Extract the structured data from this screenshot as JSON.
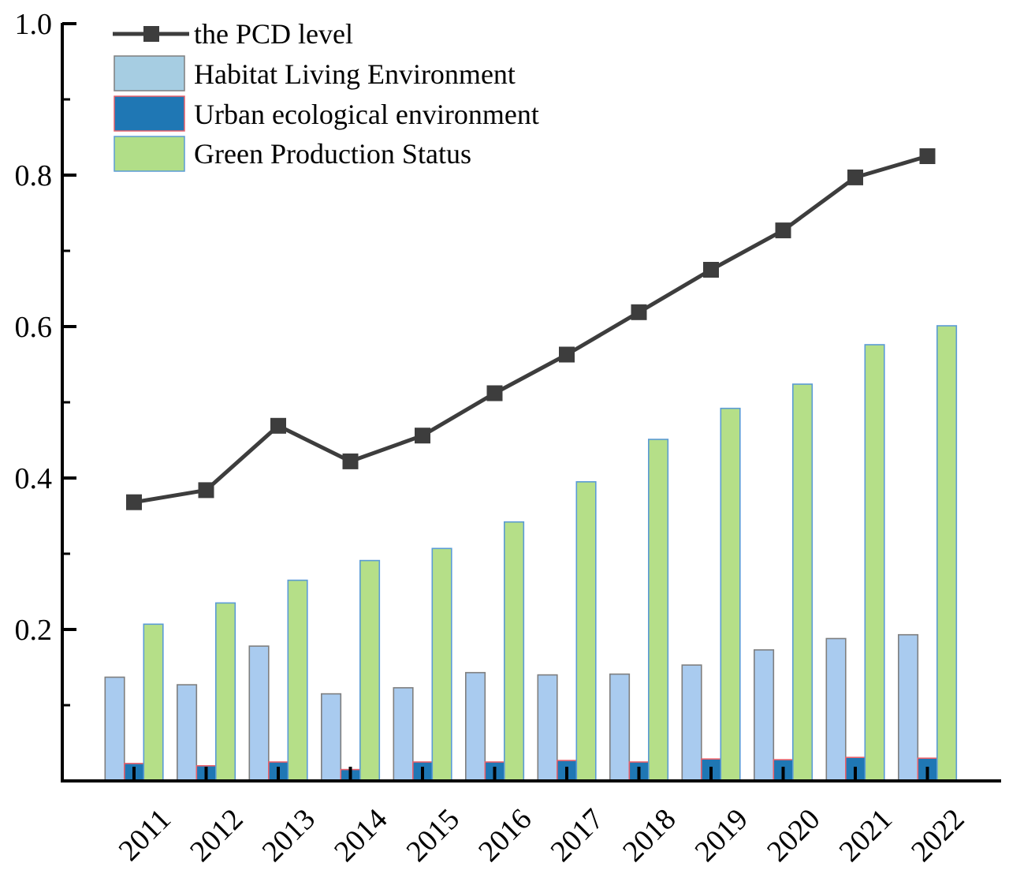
{
  "chart_data": {
    "type": "bar",
    "title": "",
    "xlabel": "",
    "ylabel": "",
    "ylim": [
      0,
      1.0
    ],
    "yticks": [
      "0.2",
      "0.4",
      "0.6",
      "0.8",
      "1.0"
    ],
    "ytick_values": [
      0.2,
      0.4,
      0.6,
      0.8,
      1.0
    ],
    "grid": false,
    "legend_position": "top-left",
    "categories": [
      "2011",
      "2012",
      "2013",
      "2014",
      "2015",
      "2016",
      "2017",
      "2018",
      "2019",
      "2020",
      "2021",
      "2022"
    ],
    "series": [
      {
        "name": "Habitat Living Environment",
        "kind": "bar",
        "color": "#a9cbef",
        "edge": "#7f7f7f",
        "values": [
          0.137,
          0.127,
          0.178,
          0.115,
          0.123,
          0.143,
          0.14,
          0.141,
          0.153,
          0.173,
          0.188,
          0.193
        ]
      },
      {
        "name": "Urban ecological environment",
        "kind": "bar",
        "color": "#1f77b4",
        "edge": "#e8606a",
        "values": [
          0.023,
          0.02,
          0.025,
          0.015,
          0.025,
          0.025,
          0.027,
          0.025,
          0.029,
          0.028,
          0.031,
          0.03
        ]
      },
      {
        "name": "Green Production Status",
        "kind": "bar",
        "color": "#b5df88",
        "edge": "#5b9bd5",
        "values": [
          0.207,
          0.235,
          0.265,
          0.291,
          0.307,
          0.342,
          0.395,
          0.451,
          0.492,
          0.524,
          0.576,
          0.601
        ]
      },
      {
        "name": "the PCD level",
        "kind": "line",
        "color": "#3d3d3d",
        "marker": "square",
        "values": [
          0.368,
          0.384,
          0.469,
          0.422,
          0.456,
          0.512,
          0.563,
          0.619,
          0.675,
          0.727,
          0.797,
          0.825
        ]
      }
    ],
    "legend": [
      "the PCD level",
      "Habitat Living Environment",
      "Urban ecological environment",
      "Green Production Status"
    ]
  }
}
